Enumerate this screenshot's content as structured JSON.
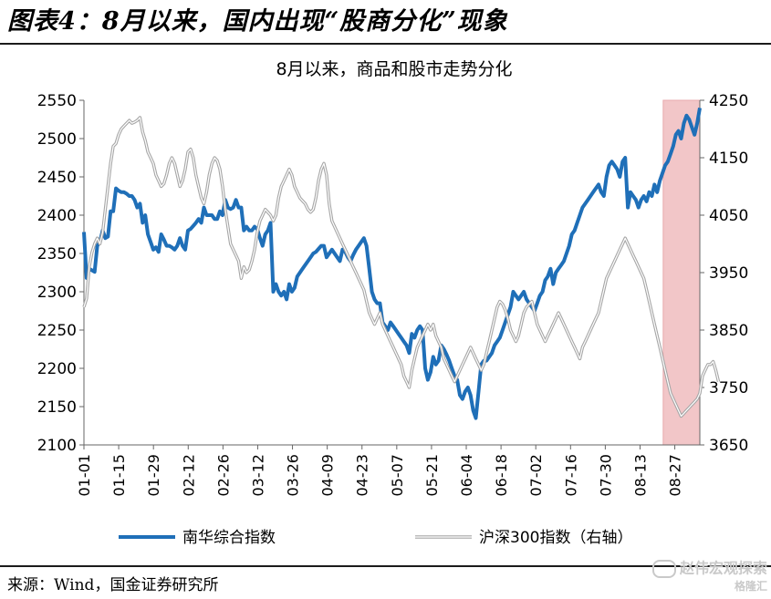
{
  "figure_title": "图表4：8月以来，国内出现“股商分化”现象",
  "source": "来源：Wind，国金证券研究所",
  "watermark": "赵伟宏观探索",
  "watermark_sub": "格隆汇",
  "chart_data": {
    "type": "line",
    "title": "8月以来，商品和股市走势分化",
    "x_ticks": [
      "01-01",
      "01-15",
      "01-29",
      "02-12",
      "02-26",
      "03-12",
      "03-26",
      "04-09",
      "04-23",
      "05-07",
      "05-21",
      "06-04",
      "06-18",
      "07-02",
      "07-16",
      "07-30",
      "08-13",
      "08-27"
    ],
    "y_left": {
      "min": 2100,
      "max": 2550,
      "ticks": [
        2100,
        2150,
        2200,
        2250,
        2300,
        2350,
        2400,
        2450,
        2500,
        2550
      ]
    },
    "y_right": {
      "min": 3650,
      "max": 4250,
      "ticks": [
        3650,
        3750,
        3850,
        3950,
        4050,
        4150,
        4250
      ]
    },
    "highlight": {
      "from": 174,
      "to": 185,
      "color": "#f2c6c8"
    },
    "series": [
      {
        "name": "南华综合指数",
        "axis": "left",
        "color": "#1f6fb8",
        "width": 4,
        "values": [
          2378,
          2318,
          2330,
          2328,
          2326,
          2360,
          2365,
          2380,
          2370,
          2372,
          2405,
          2405,
          2435,
          2432,
          2430,
          2430,
          2428,
          2425,
          2425,
          2420,
          2410,
          2415,
          2390,
          2400,
          2375,
          2365,
          2355,
          2358,
          2352,
          2375,
          2368,
          2360,
          2360,
          2358,
          2355,
          2360,
          2370,
          2360,
          2355,
          2380,
          2382,
          2386,
          2390,
          2395,
          2390,
          2410,
          2400,
          2400,
          2400,
          2395,
          2395,
          2405,
          2400,
          2420,
          2410,
          2408,
          2410,
          2420,
          2410,
          2410,
          2380,
          2385,
          2380,
          2380,
          2385,
          2382,
          2370,
          2360,
          2375,
          2380,
          2390,
          2300,
          2310,
          2300,
          2295,
          2300,
          2290,
          2310,
          2300,
          2305,
          2320,
          2325,
          2330,
          2335,
          2340,
          2345,
          2350,
          2352,
          2356,
          2360,
          2360,
          2345,
          2350,
          2355,
          2350,
          2345,
          2340,
          2355,
          2352,
          2345,
          2340,
          2348,
          2355,
          2360,
          2365,
          2370,
          2360,
          2330,
          2300,
          2290,
          2285,
          2285,
          2260,
          2255,
          2250,
          2260,
          2255,
          2250,
          2245,
          2240,
          2235,
          2230,
          2220,
          2245,
          2240,
          2250,
          2255,
          2250,
          2200,
          2185,
          2195,
          2215,
          2205,
          2210,
          2230,
          2225,
          2218,
          2210,
          2200,
          2190,
          2185,
          2165,
          2160,
          2170,
          2175,
          2165,
          2145,
          2135,
          2170,
          2205,
          2210,
          2210,
          2215,
          2220,
          2230,
          2235,
          2240,
          2250,
          2260,
          2270,
          2280,
          2300,
          2295,
          2290,
          2295,
          2300,
          2290,
          2285,
          2280,
          2275,
          2285,
          2295,
          2300,
          2315,
          2320,
          2330,
          2310,
          2325,
          2330,
          2335,
          2340,
          2350,
          2360,
          2375,
          2380,
          2390,
          2400,
          2410,
          2415,
          2420,
          2425,
          2430,
          2435,
          2440,
          2430,
          2425,
          2450,
          2465,
          2470,
          2465,
          2460,
          2450,
          2470,
          2475,
          2410,
          2430,
          2425,
          2420,
          2410,
          2420,
          2425,
          2418,
          2430,
          2425,
          2440,
          2430,
          2445,
          2455,
          2465,
          2470,
          2480,
          2490,
          2505,
          2510,
          2500,
          2520,
          2530,
          2525,
          2515,
          2505,
          2520,
          2540
        ]
      },
      {
        "name": "沪深300指数（右轴）",
        "axis": "right",
        "color": "#a6a6a6",
        "width": 1.6,
        "double": true,
        "values": [
          3890,
          3905,
          3960,
          3985,
          4000,
          4010,
          4000,
          4020,
          4060,
          4100,
          4140,
          4170,
          4175,
          4190,
          4200,
          4205,
          4210,
          4215,
          4210,
          4212,
          4215,
          4220,
          4195,
          4180,
          4160,
          4150,
          4140,
          4120,
          4110,
          4100,
          4105,
          4120,
          4140,
          4150,
          4140,
          4120,
          4100,
          4110,
          4130,
          4160,
          4165,
          4150,
          4120,
          4100,
          4080,
          4070,
          4090,
          4120,
          4140,
          4150,
          4145,
          4130,
          4100,
          4060,
          4030,
          4000,
          3990,
          3980,
          3970,
          3940,
          3960,
          3950,
          3955,
          3970,
          3990,
          4020,
          4040,
          4050,
          4060,
          4055,
          4050,
          4040,
          4050,
          4080,
          4100,
          4110,
          4120,
          4130,
          4120,
          4100,
          4090,
          4080,
          4075,
          4070,
          4060,
          4055,
          4060,
          4080,
          4110,
          4130,
          4140,
          4120,
          4070,
          4040,
          4030,
          4020,
          4010,
          4000,
          3990,
          3980,
          3970,
          3960,
          3950,
          3940,
          3930,
          3920,
          3900,
          3880,
          3870,
          3860,
          3870,
          3880,
          3860,
          3850,
          3840,
          3830,
          3820,
          3810,
          3800,
          3790,
          3770,
          3760,
          3750,
          3780,
          3800,
          3820,
          3830,
          3840,
          3850,
          3860,
          3850,
          3860,
          3840,
          3830,
          3820,
          3800,
          3790,
          3780,
          3770,
          3760,
          3770,
          3780,
          3790,
          3800,
          3810,
          3820,
          3810,
          3800,
          3790,
          3780,
          3790,
          3810,
          3830,
          3850,
          3870,
          3890,
          3900,
          3895,
          3885,
          3870,
          3850,
          3840,
          3830,
          3840,
          3860,
          3880,
          3890,
          3895,
          3900,
          3880,
          3860,
          3850,
          3840,
          3830,
          3840,
          3850,
          3860,
          3870,
          3880,
          3870,
          3860,
          3850,
          3840,
          3830,
          3820,
          3810,
          3800,
          3820,
          3830,
          3840,
          3850,
          3860,
          3870,
          3880,
          3900,
          3920,
          3940,
          3950,
          3960,
          3970,
          3980,
          3990,
          4000,
          4010,
          4000,
          3990,
          3980,
          3970,
          3960,
          3950,
          3940,
          3920,
          3900,
          3880,
          3860,
          3840,
          3820,
          3800,
          3780,
          3760,
          3740,
          3730,
          3720,
          3710,
          3700,
          3705,
          3710,
          3715,
          3720,
          3725,
          3730,
          3740,
          3770,
          3780,
          3790,
          3790,
          3795,
          3780,
          3760
        ]
      }
    ],
    "legend": "bottom"
  }
}
